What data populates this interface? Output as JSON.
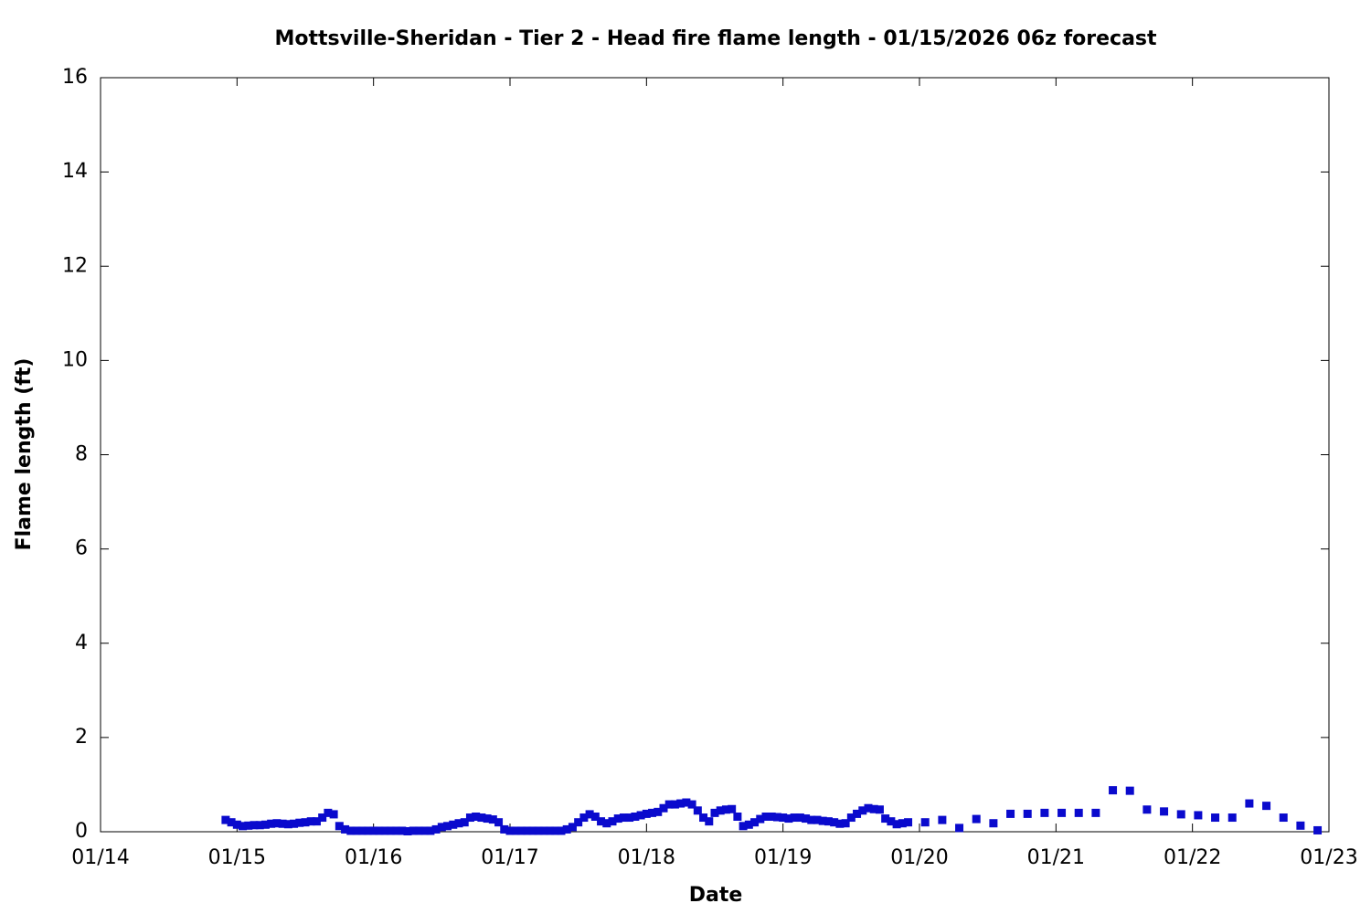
{
  "chart_data": {
    "type": "scatter",
    "title": "Mottsville-Sheridan - Tier 2 - Head fire flame length - 01/15/2026 06z forecast",
    "xlabel": "Date",
    "ylabel": "Flame length (ft)",
    "color": "#0a0acd",
    "xlim": [
      0,
      216
    ],
    "xticks": [
      {
        "value": 0,
        "label": "01/14"
      },
      {
        "value": 24,
        "label": "01/15"
      },
      {
        "value": 48,
        "label": "01/16"
      },
      {
        "value": 72,
        "label": "01/17"
      },
      {
        "value": 96,
        "label": "01/18"
      },
      {
        "value": 120,
        "label": "01/19"
      },
      {
        "value": 144,
        "label": "01/20"
      },
      {
        "value": 168,
        "label": "01/21"
      },
      {
        "value": 192,
        "label": "01/22"
      },
      {
        "value": 216,
        "label": "01/23"
      }
    ],
    "ylim": [
      0,
      16
    ],
    "yticks": [
      0,
      2,
      4,
      6,
      8,
      10,
      12,
      14,
      16
    ],
    "grid": false,
    "x": [
      22,
      23,
      24,
      25,
      26,
      27,
      28,
      29,
      30,
      31,
      32,
      33,
      34,
      35,
      36,
      37,
      38,
      39,
      40,
      41,
      42,
      43,
      44,
      45,
      46,
      47,
      48,
      49,
      50,
      51,
      52,
      53,
      54,
      55,
      56,
      57,
      58,
      59,
      60,
      61,
      62,
      63,
      64,
      65,
      66,
      67,
      68,
      69,
      70,
      71,
      72,
      73,
      74,
      75,
      76,
      77,
      78,
      79,
      80,
      81,
      82,
      83,
      84,
      85,
      86,
      87,
      88,
      89,
      90,
      91,
      92,
      93,
      94,
      95,
      96,
      97,
      98,
      99,
      100,
      101,
      102,
      103,
      104,
      105,
      106,
      107,
      108,
      109,
      110,
      111,
      112,
      113,
      114,
      115,
      116,
      117,
      118,
      119,
      120,
      121,
      122,
      123,
      124,
      125,
      126,
      127,
      128,
      129,
      130,
      131,
      132,
      133,
      134,
      135,
      136,
      137,
      138,
      139,
      140,
      141,
      142,
      145,
      148,
      151,
      154,
      157,
      160,
      163,
      166,
      169,
      172,
      175,
      178,
      181,
      184,
      187,
      190,
      193,
      196,
      199,
      202,
      205,
      208,
      211,
      214
    ],
    "values": [
      0.25,
      0.2,
      0.15,
      0.12,
      0.13,
      0.14,
      0.14,
      0.15,
      0.17,
      0.18,
      0.17,
      0.16,
      0.17,
      0.19,
      0.2,
      0.22,
      0.22,
      0.3,
      0.4,
      0.37,
      0.12,
      0.05,
      0.02,
      0.02,
      0.02,
      0.02,
      0.02,
      0.02,
      0.02,
      0.02,
      0.02,
      0.02,
      0.01,
      0.02,
      0.02,
      0.02,
      0.02,
      0.05,
      0.1,
      0.12,
      0.15,
      0.18,
      0.2,
      0.3,
      0.32,
      0.3,
      0.28,
      0.26,
      0.2,
      0.05,
      0.02,
      0.02,
      0.02,
      0.02,
      0.02,
      0.02,
      0.02,
      0.02,
      0.02,
      0.02,
      0.05,
      0.1,
      0.2,
      0.3,
      0.37,
      0.32,
      0.22,
      0.18,
      0.22,
      0.28,
      0.3,
      0.3,
      0.32,
      0.35,
      0.38,
      0.4,
      0.42,
      0.5,
      0.58,
      0.58,
      0.6,
      0.62,
      0.58,
      0.45,
      0.3,
      0.22,
      0.4,
      0.45,
      0.47,
      0.48,
      0.32,
      0.12,
      0.15,
      0.2,
      0.27,
      0.32,
      0.32,
      0.31,
      0.3,
      0.28,
      0.3,
      0.3,
      0.28,
      0.25,
      0.25,
      0.23,
      0.22,
      0.2,
      0.17,
      0.18,
      0.3,
      0.38,
      0.45,
      0.5,
      0.48,
      0.47,
      0.28,
      0.22,
      0.16,
      0.18,
      0.2,
      0.2,
      0.25,
      0.08,
      0.27,
      0.18,
      0.38,
      0.38,
      0.4,
      0.4,
      0.4,
      0.4,
      0.88,
      0.87,
      0.47,
      0.43,
      0.37,
      0.35,
      0.3,
      0.3,
      0.6,
      0.55,
      0.3,
      0.13,
      0.03
    ]
  }
}
